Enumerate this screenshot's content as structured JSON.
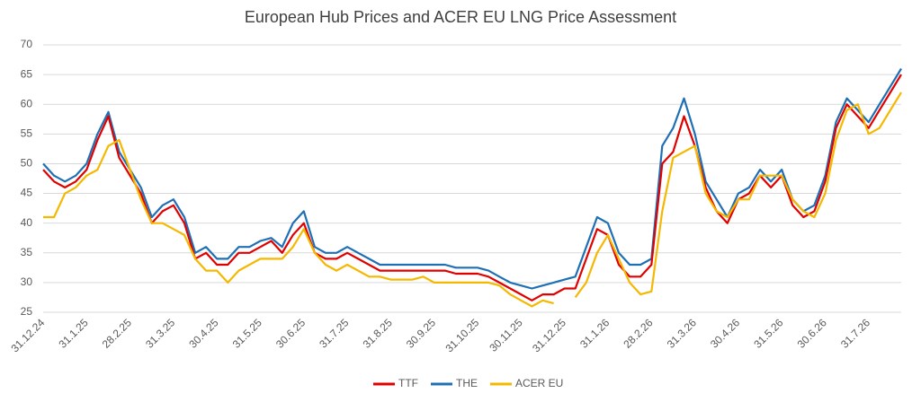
{
  "chart_data": {
    "type": "line",
    "title": "European Hub Prices and ACER EU LNG Price Assessment",
    "categories": [
      "31.12.24",
      null,
      null,
      null,
      "31.1.25",
      null,
      null,
      null,
      "28.2.25",
      null,
      null,
      null,
      "31.3.25",
      null,
      null,
      null,
      "30.4.25",
      null,
      null,
      null,
      "31.5.25",
      null,
      null,
      null,
      "30.6.25",
      null,
      null,
      null,
      "31.7.25",
      null,
      null,
      null,
      "31.8.25",
      null,
      null,
      null,
      "30.9.25",
      null,
      null,
      null,
      "31.10.25",
      null,
      null,
      null,
      "30.11.25",
      null,
      null,
      null,
      "31.12.25",
      null,
      null,
      null,
      "31.1.26",
      null,
      null,
      null,
      "28.2.26",
      null,
      null,
      null,
      "31.3.26",
      null,
      null,
      null,
      "30.4.26",
      null,
      null,
      null,
      "31.5.26",
      null,
      null,
      null,
      "30.6.26",
      null,
      null,
      null,
      "31.7.26",
      null,
      null,
      null
    ],
    "series": [
      {
        "name": "THE",
        "color": "#1f6fb5",
        "values": [
          50,
          48,
          47,
          48,
          50,
          55,
          58.7,
          52,
          49,
          46,
          41,
          43,
          44,
          41,
          35,
          36,
          34,
          34,
          36,
          36,
          37,
          37.5,
          36,
          40,
          42,
          36,
          35,
          35,
          36,
          35,
          34,
          33,
          33,
          33,
          33,
          33,
          33,
          33,
          32.5,
          32.5,
          32.5,
          32,
          31,
          30,
          29.5,
          29,
          29.5,
          30,
          30.5,
          31,
          36,
          41,
          40,
          35,
          33,
          33,
          34,
          53,
          56,
          61,
          55,
          47,
          44,
          41,
          45,
          46,
          49,
          47,
          49,
          44,
          42,
          43,
          48,
          57,
          61,
          59,
          57,
          60,
          63,
          66
        ]
      },
      {
        "name": "TTF",
        "color": "#e00000",
        "values": [
          49,
          47,
          46,
          47,
          49,
          54,
          58,
          51,
          48,
          45,
          40,
          42,
          43,
          40,
          34,
          35,
          33,
          33,
          35,
          35,
          36,
          37,
          35,
          38,
          40,
          35,
          34,
          34,
          35,
          34,
          33,
          32,
          32,
          32,
          32,
          32,
          32,
          32,
          31.5,
          31.5,
          31.5,
          31,
          30,
          29,
          28,
          27,
          28,
          28,
          29,
          29,
          34,
          39,
          38,
          33,
          31,
          31,
          33,
          50,
          52,
          58,
          53,
          46,
          42,
          40,
          44,
          45,
          48,
          46,
          48,
          43,
          41,
          42,
          47,
          56,
          60,
          58,
          56,
          59,
          62,
          65
        ]
      },
      {
        "name": "ACER EU",
        "color": "#f5b800",
        "values": [
          41,
          41,
          45,
          46,
          48,
          49,
          53,
          54,
          49,
          44,
          40,
          40,
          39,
          38,
          34,
          32,
          32,
          30,
          32,
          33,
          34,
          34,
          34,
          36,
          39,
          35,
          33,
          32,
          33,
          32,
          31,
          31,
          30.5,
          30.5,
          30.5,
          31,
          30,
          30,
          30,
          30,
          30,
          30,
          29.5,
          28,
          27,
          26,
          27,
          26.5,
          null,
          27.5,
          30,
          35,
          38,
          34,
          30,
          28,
          28.5,
          42,
          51,
          52,
          53,
          45,
          42,
          41,
          44,
          44,
          48,
          48,
          48,
          44,
          42,
          41,
          45,
          54,
          59,
          60,
          55,
          56,
          59,
          62
        ]
      }
    ],
    "ylim": [
      25,
      70
    ],
    "yticks": [
      25,
      30,
      35,
      40,
      45,
      50,
      55,
      60,
      65,
      70
    ],
    "grid": true,
    "legend": "bottom"
  }
}
